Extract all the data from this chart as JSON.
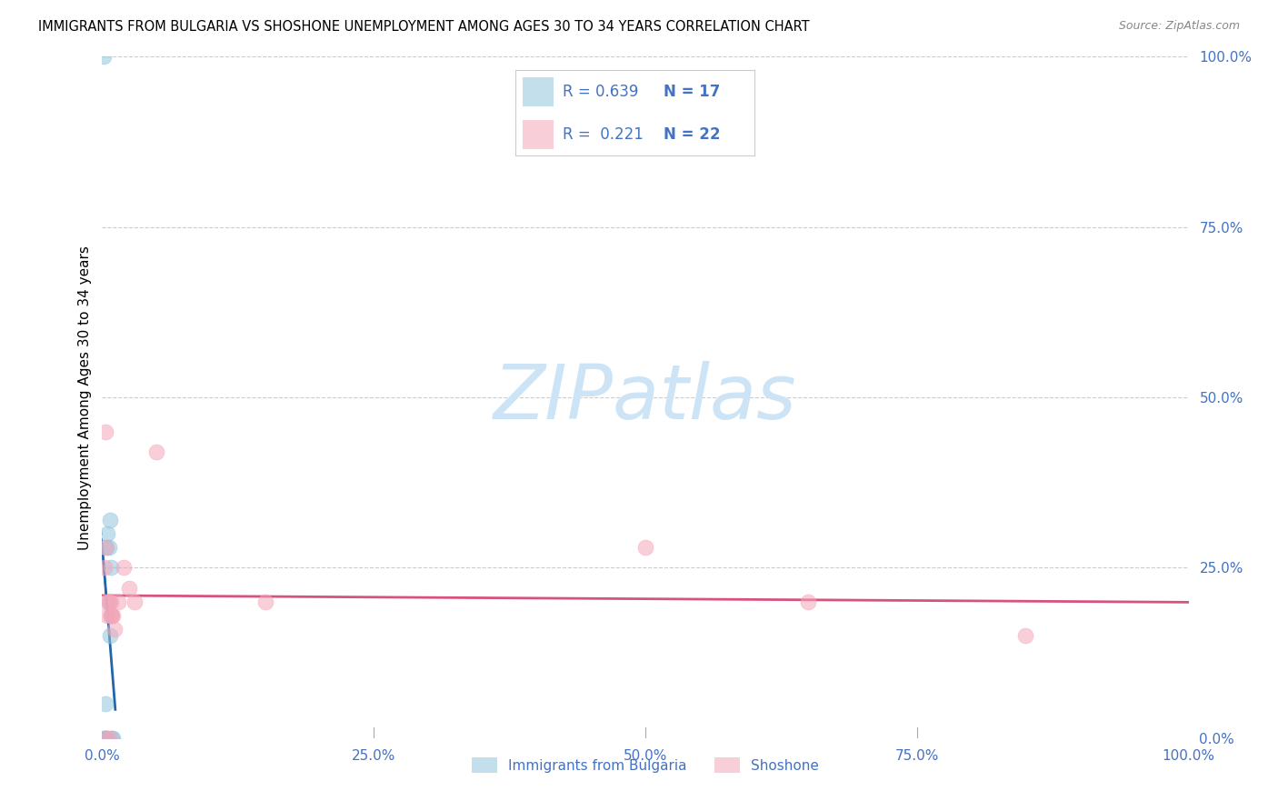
{
  "title": "IMMIGRANTS FROM BULGARIA VS SHOSHONE UNEMPLOYMENT AMONG AGES 30 TO 34 YEARS CORRELATION CHART",
  "source": "Source: ZipAtlas.com",
  "axis_color": "#4472c4",
  "ylabel": "Unemployment Among Ages 30 to 34 years",
  "xlim": [
    0.0,
    1.0
  ],
  "ylim": [
    0.0,
    1.0
  ],
  "bulgaria_color": "#92c5de",
  "shoshone_color": "#f4a6b8",
  "bulgaria_line_color": "#2166ac",
  "shoshone_line_color": "#d6547c",
  "bulgaria_R": 0.639,
  "bulgaria_N": 17,
  "shoshone_R": 0.221,
  "shoshone_N": 22,
  "legend_text_color": "#4472c4",
  "watermark_color": "#cce4f5",
  "bulgaria_points_x": [
    0.001,
    0.002,
    0.003,
    0.003,
    0.004,
    0.004,
    0.005,
    0.005,
    0.006,
    0.006,
    0.007,
    0.007,
    0.008,
    0.008,
    0.009,
    0.01,
    0.001
  ],
  "bulgaria_points_y": [
    0.0,
    0.0,
    0.0,
    0.05,
    0.0,
    0.28,
    0.0,
    0.3,
    0.2,
    0.28,
    0.15,
    0.32,
    0.18,
    0.25,
    0.0,
    0.0,
    1.0
  ],
  "shoshone_points_x": [
    0.002,
    0.003,
    0.004,
    0.005,
    0.006,
    0.007,
    0.008,
    0.009,
    0.01,
    0.011,
    0.015,
    0.02,
    0.025,
    0.03,
    0.05,
    0.15,
    0.5,
    0.65,
    0.85,
    0.004,
    0.008,
    0.003
  ],
  "shoshone_points_y": [
    0.25,
    0.28,
    0.0,
    0.18,
    0.2,
    0.0,
    0.2,
    0.18,
    0.18,
    0.16,
    0.2,
    0.25,
    0.22,
    0.2,
    0.42,
    0.2,
    0.28,
    0.2,
    0.15,
    0.2,
    0.18,
    0.45
  ]
}
